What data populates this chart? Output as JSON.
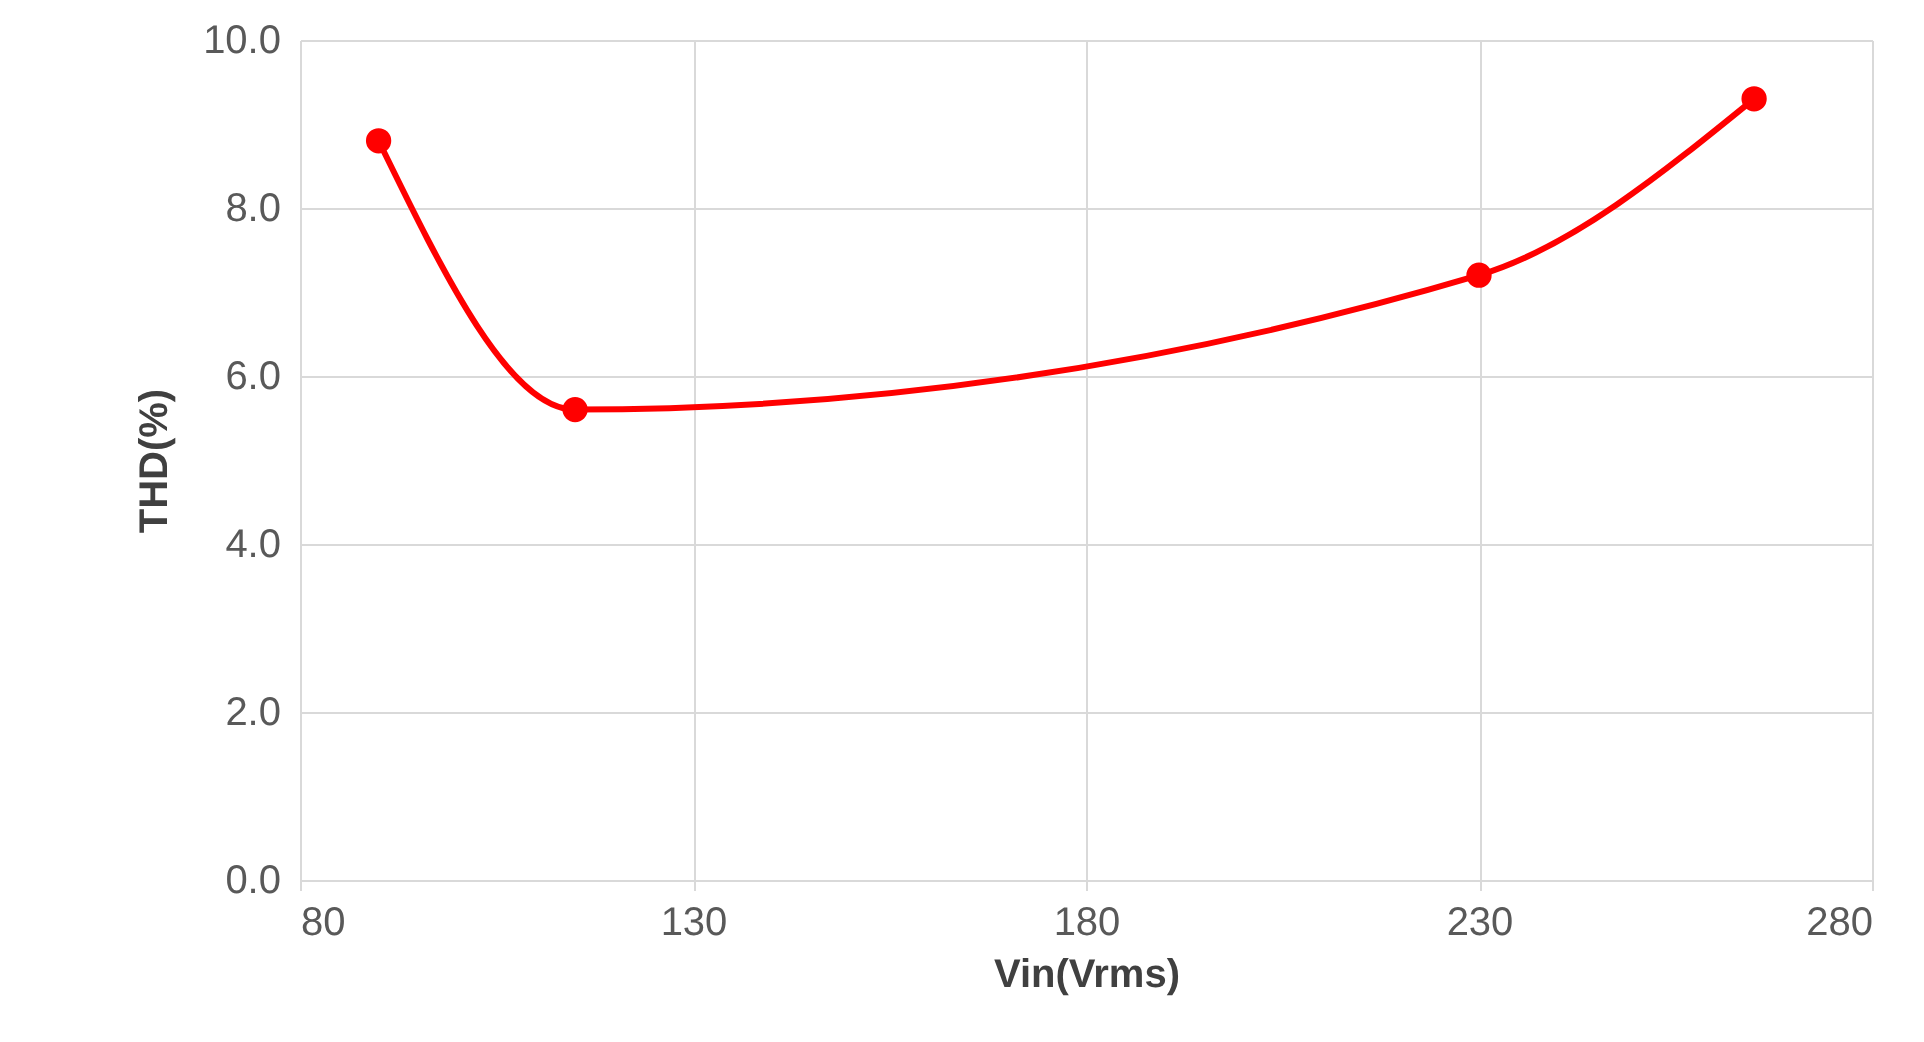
{
  "chart_data": {
    "type": "line",
    "xlabel": "Vin(Vrms)",
    "ylabel": "THD(%)",
    "x": [
      90,
      115,
      230,
      265
    ],
    "series": [
      {
        "color": "#ff0000",
        "values": [
          8.8,
          5.6,
          7.2,
          9.3
        ]
      }
    ],
    "xlim": [
      80,
      280
    ],
    "xticks": [
      80,
      130,
      180,
      230,
      280
    ],
    "ylim": [
      0,
      10
    ],
    "yticks": [
      {
        "value": 0,
        "label": "0.0"
      },
      {
        "value": 2,
        "label": "2.0"
      },
      {
        "value": 4,
        "label": "4.0"
      },
      {
        "value": 6,
        "label": "6.0"
      },
      {
        "value": 8,
        "label": "8.0"
      },
      {
        "value": 10,
        "label": "10.0"
      }
    ],
    "grid": true,
    "marker": "circle",
    "line_style": "solid"
  }
}
